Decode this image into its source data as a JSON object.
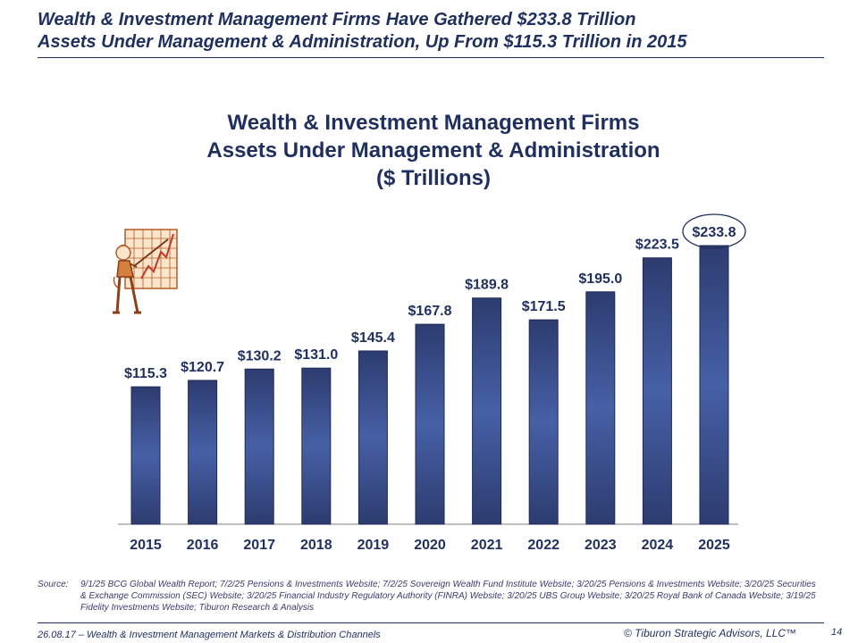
{
  "headline": {
    "line1": "Wealth & Investment Management Firms Have Gathered $233.8 Trillion",
    "line2": "Assets Under Management & Administration, Up From $115.3 Trillion in 2015"
  },
  "chart_data": {
    "type": "bar",
    "title_lines": [
      "Wealth & Investment Management Firms",
      "Assets Under Management & Administration",
      "($ Trillions)"
    ],
    "categories": [
      "2015",
      "2016",
      "2017",
      "2018",
      "2019",
      "2020",
      "2021",
      "2022",
      "2023",
      "2024",
      "2025"
    ],
    "values": [
      115.3,
      120.7,
      130.2,
      131.0,
      145.4,
      167.8,
      189.8,
      171.5,
      195.0,
      223.5,
      233.8
    ],
    "data_labels": [
      "$115.3",
      "$120.7",
      "$130.2",
      "$131.0",
      "$145.4",
      "$167.8",
      "$189.8",
      "$171.5",
      "$195.0",
      "$223.5",
      "$233.8"
    ],
    "ylim": [
      0,
      233.8
    ],
    "highlighted_category": "2025",
    "grid": false,
    "bar_color_top": "#2d3c70",
    "bar_color_mid": "#4660a6",
    "label_color": "#1f2f5f"
  },
  "source": {
    "label": "Source:",
    "text": "9/1/25 BCG Global Wealth Report; 7/2/25 Pensions & Investments Website; 7/2/25 Sovereign Wealth Fund Institute Website; 3/20/25 Pensions & Investments Website; 3/20/25 Securities & Exchange Commission (SEC) Website; 3/20/25 Financial Industry Regulatory Authority (FINRA) Website; 3/20/25 UBS Group Website; 3/20/25 Royal Bank of Canada Website; 3/19/25 Fidelity Investments Website; Tiburon Research & Analysis"
  },
  "footer": {
    "left": "26.08.17 – Wealth & Investment Management Markets & Distribution Channels",
    "right": "© Tiburon Strategic Advisors, LLC™",
    "page": "14"
  },
  "icons": {
    "clipart": "presenter-chart-icon"
  }
}
